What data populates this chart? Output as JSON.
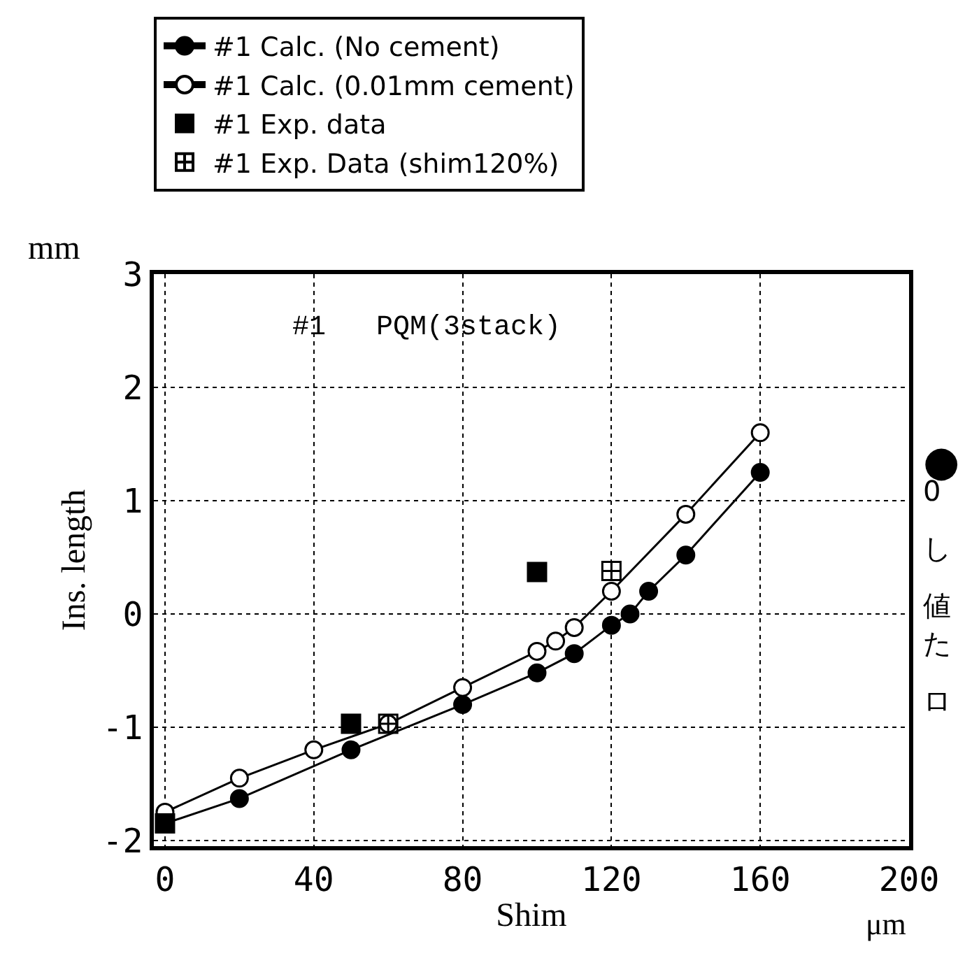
{
  "chart_data": {
    "type": "line",
    "xlabel": "Shim",
    "ylabel": "Ins. length",
    "xlim": [
      -3,
      200
    ],
    "ylim": [
      -2.05,
      3
    ],
    "xticks": [
      0,
      40,
      80,
      120,
      160,
      200
    ],
    "yticks": [
      -2,
      -1,
      0,
      1,
      2,
      3
    ],
    "grid": true,
    "legend": "top",
    "series": [
      {
        "name": "#1 Calc. (No cement)",
        "marker": "circle",
        "color": "#000000",
        "x": [
          0,
          20,
          50,
          80,
          100,
          110,
          120,
          125,
          130,
          140,
          160
        ],
        "values": [
          -1.85,
          -1.63,
          -1.2,
          -0.8,
          -0.52,
          -0.35,
          -0.1,
          0.0,
          0.2,
          0.52,
          1.25
        ]
      },
      {
        "name": "#1 Calc. (0.01mm cement)",
        "marker": "circle",
        "color": "#000000",
        "x": [
          0,
          20,
          40,
          60,
          80,
          100,
          105,
          110,
          120,
          140,
          160
        ],
        "values": [
          -1.75,
          -1.45,
          -1.2,
          -0.97,
          -0.65,
          -0.33,
          -0.24,
          -0.12,
          0.2,
          0.88,
          1.6
        ]
      },
      {
        "name": "#1 Exp. data",
        "type": "scatter",
        "marker": "square",
        "color": "#000000",
        "x": [
          0,
          50,
          100
        ],
        "values": [
          -1.85,
          -0.97,
          0.37
        ]
      },
      {
        "name": "#1 Exp. Data (shim120%)",
        "type": "scatter",
        "marker": "cross",
        "color": "#000000",
        "x": [
          60,
          120
        ],
        "values": [
          -0.97,
          0.38
        ]
      }
    ],
    "annotations": [
      "#1   PQM(3stack)",
      "mm",
      "μm",
      "●",
      "0",
      "し",
      "値",
      "た",
      "ロ"
    ]
  }
}
